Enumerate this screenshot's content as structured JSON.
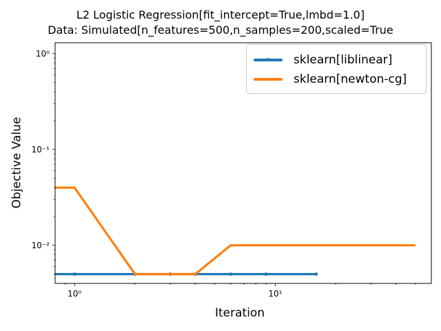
{
  "title": {
    "line1": "L2 Logistic Regression[fit_intercept=True,lmbd=1.0]",
    "line2": "Data: Simulated[n_features=500,n_samples=200,scaled=True"
  },
  "chart_data": {
    "type": "line",
    "xlabel": "Iteration",
    "ylabel": "Objective Value",
    "xscale": "log",
    "yscale": "log",
    "xlim": [
      0.8,
      60
    ],
    "ylim": [
      0.004,
      1.3
    ],
    "x_major_ticks": [
      1,
      10
    ],
    "x_tick_labels": [
      "10⁰",
      "10¹"
    ],
    "y_major_ticks": [
      0.01,
      0.1,
      1
    ],
    "y_tick_labels": [
      "10⁻²",
      "10⁻¹",
      "10⁰"
    ],
    "grid": false,
    "legend_position": "top-right",
    "series": [
      {
        "name": "sklearn[liblinear]",
        "color": "#1f77b4",
        "marker": "dot",
        "points": [
          [
            0.8,
            0.005
          ],
          [
            1,
            0.005
          ],
          [
            2,
            0.005
          ],
          [
            3,
            0.005
          ],
          [
            4,
            0.005
          ],
          [
            6,
            0.005
          ],
          [
            9,
            0.005
          ],
          [
            16,
            0.005
          ]
        ]
      },
      {
        "name": "sklearn[newton-cg]",
        "color": "#ff7f0e",
        "marker": "none",
        "points": [
          [
            0.8,
            0.04
          ],
          [
            1,
            0.04
          ],
          [
            2,
            0.005
          ],
          [
            3,
            0.005
          ],
          [
            4,
            0.005
          ],
          [
            6,
            0.01
          ],
          [
            10,
            0.01
          ],
          [
            50,
            0.01
          ]
        ]
      }
    ]
  }
}
